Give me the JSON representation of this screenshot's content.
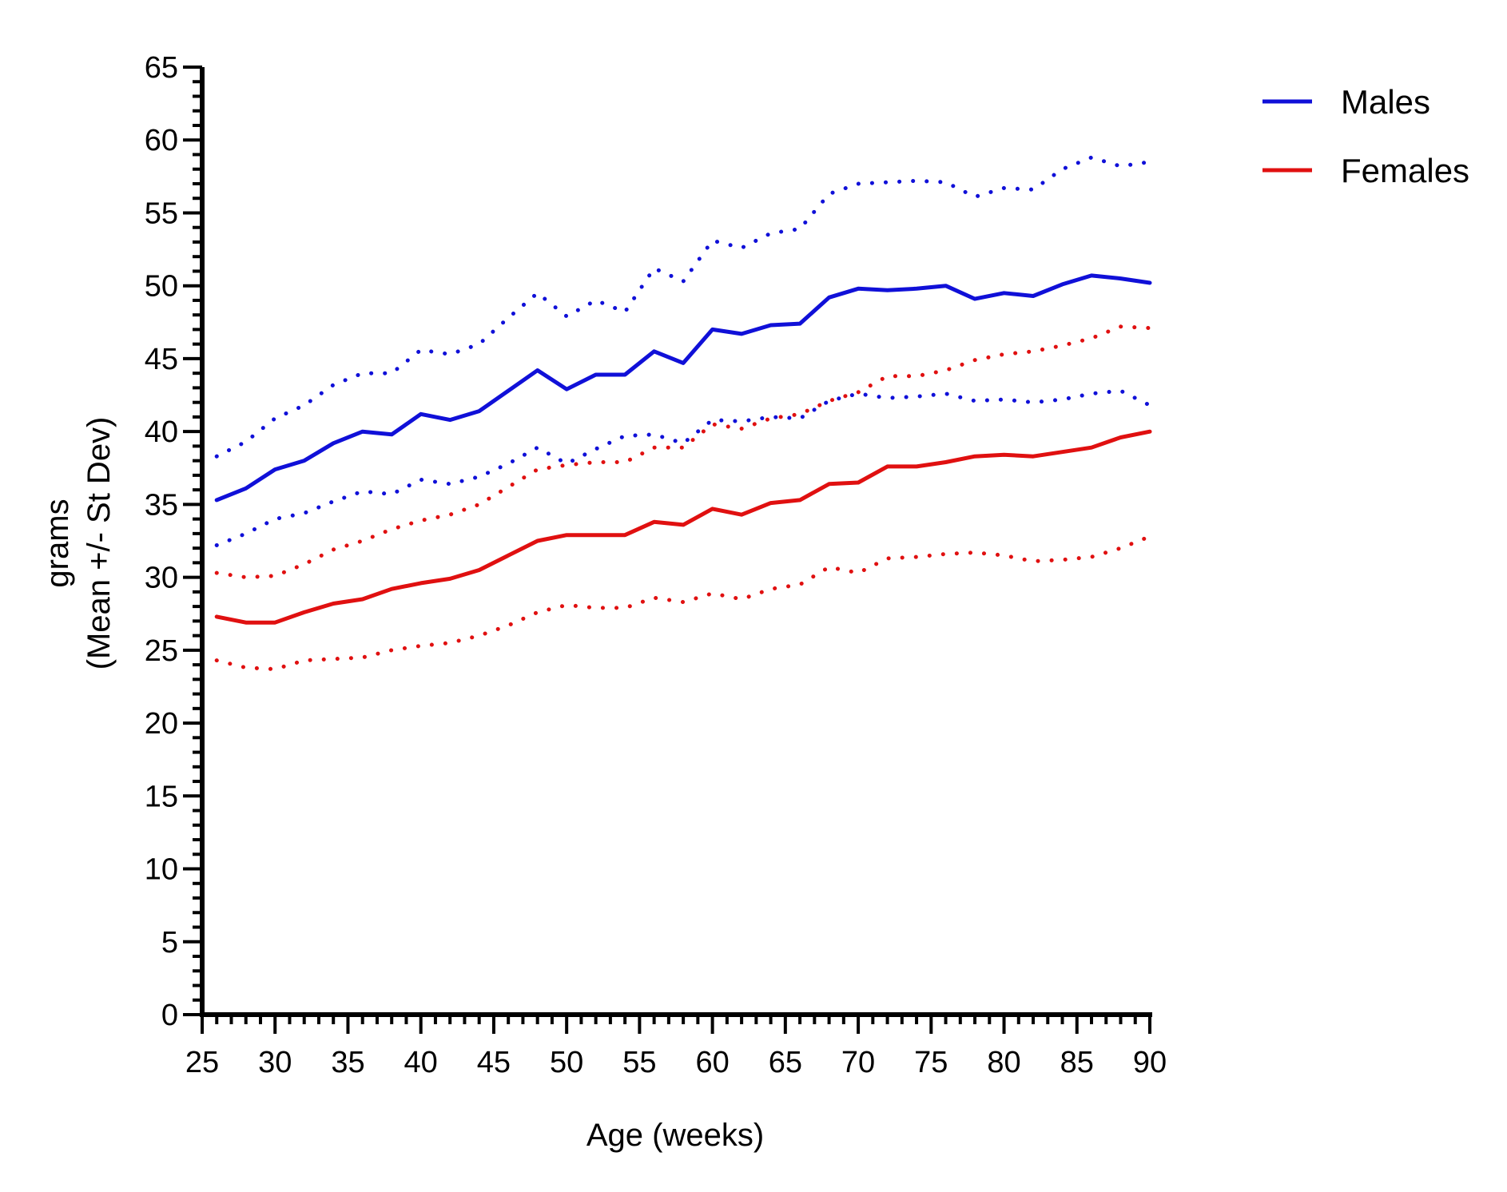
{
  "chart_data": {
    "type": "line",
    "title": "",
    "xlabel": "Age (weeks)",
    "ylabel_line1": "grams",
    "ylabel_line2": "(Mean +/- St Dev)",
    "xlim": [
      25,
      90
    ],
    "ylim": [
      0,
      65
    ],
    "x_ticks": [
      "25",
      "30",
      "35",
      "40",
      "45",
      "50",
      "55",
      "60",
      "65",
      "70",
      "75",
      "80",
      "85",
      "90"
    ],
    "y_ticks": [
      "0",
      "5",
      "10",
      "15",
      "20",
      "25",
      "30",
      "35",
      "40",
      "45",
      "50",
      "55",
      "60",
      "65"
    ],
    "x_minor_step": 1,
    "y_minor_step": 1,
    "grid": false,
    "legend_position": "top-right",
    "legend": [
      {
        "label": "Males",
        "color": "#1010d8"
      },
      {
        "label": "Females",
        "color": "#e01010"
      }
    ],
    "x": [
      26,
      28,
      30,
      32,
      34,
      36,
      38,
      40,
      42,
      44,
      46,
      48,
      50,
      52,
      54,
      56,
      58,
      60,
      62,
      64,
      66,
      68,
      70,
      72,
      74,
      76,
      78,
      80,
      82,
      84,
      86,
      88,
      90
    ],
    "series": [
      {
        "name": "Males",
        "group": "Males",
        "style": "solid",
        "color": "#1010d8",
        "values": [
          35.3,
          36.1,
          37.4,
          38.0,
          39.2,
          40.0,
          39.8,
          41.2,
          40.8,
          41.4,
          42.8,
          44.2,
          42.9,
          43.9,
          43.9,
          45.5,
          44.7,
          47.0,
          46.7,
          47.3,
          47.4,
          49.2,
          49.8,
          49.7,
          49.8,
          50.0,
          49.1,
          49.5,
          49.3,
          50.1,
          50.7,
          50.5,
          50.2
        ]
      },
      {
        "group": "Males",
        "style": "dotted",
        "color": "#1010d8",
        "values": [
          38.3,
          39.3,
          40.9,
          41.8,
          43.2,
          44.0,
          44.0,
          45.6,
          45.3,
          46.0,
          47.8,
          49.5,
          47.9,
          49.0,
          48.2,
          51.2,
          50.3,
          53.1,
          52.6,
          53.6,
          53.9,
          56.3,
          57.0,
          57.1,
          57.2,
          57.1,
          56.1,
          56.7,
          56.6,
          58.0,
          58.8,
          58.2,
          58.5
        ]
      },
      {
        "group": "Males",
        "style": "dotted",
        "color": "#1010d8",
        "values": [
          32.2,
          33.0,
          34.0,
          34.4,
          35.2,
          35.9,
          35.7,
          36.7,
          36.4,
          36.9,
          37.8,
          38.9,
          37.8,
          38.8,
          39.7,
          39.8,
          39.2,
          40.8,
          40.7,
          41.0,
          40.9,
          42.1,
          42.6,
          42.3,
          42.4,
          42.6,
          42.1,
          42.2,
          42.0,
          42.2,
          42.6,
          42.8,
          41.8
        ]
      },
      {
        "name": "Females",
        "group": "Females",
        "style": "solid",
        "color": "#e01010",
        "values": [
          27.3,
          26.9,
          26.9,
          27.6,
          28.2,
          28.5,
          29.2,
          29.6,
          29.9,
          30.5,
          31.5,
          32.5,
          32.9,
          32.9,
          32.9,
          33.8,
          33.6,
          34.7,
          34.3,
          35.1,
          35.3,
          36.4,
          36.5,
          37.6,
          37.6,
          37.9,
          38.3,
          38.4,
          38.3,
          38.6,
          38.9,
          39.6,
          40.0
        ]
      },
      {
        "group": "Females",
        "style": "dotted",
        "color": "#e01010",
        "values": [
          30.3,
          30.0,
          30.1,
          30.9,
          31.9,
          32.5,
          33.3,
          33.9,
          34.3,
          35.0,
          36.2,
          37.4,
          37.7,
          37.9,
          37.9,
          38.9,
          38.9,
          40.5,
          40.2,
          40.9,
          41.2,
          42.1,
          42.7,
          43.8,
          43.8,
          44.2,
          44.9,
          45.3,
          45.5,
          45.9,
          46.4,
          47.2,
          47.1
        ]
      },
      {
        "group": "Females",
        "style": "dotted",
        "color": "#e01010",
        "values": [
          24.3,
          23.8,
          23.7,
          24.3,
          24.4,
          24.5,
          25.0,
          25.3,
          25.5,
          26.0,
          26.7,
          27.6,
          28.1,
          27.9,
          27.9,
          28.6,
          28.3,
          28.9,
          28.5,
          29.2,
          29.5,
          30.7,
          30.3,
          31.3,
          31.4,
          31.6,
          31.7,
          31.5,
          31.1,
          31.2,
          31.4,
          32.0,
          32.8
        ]
      }
    ]
  }
}
